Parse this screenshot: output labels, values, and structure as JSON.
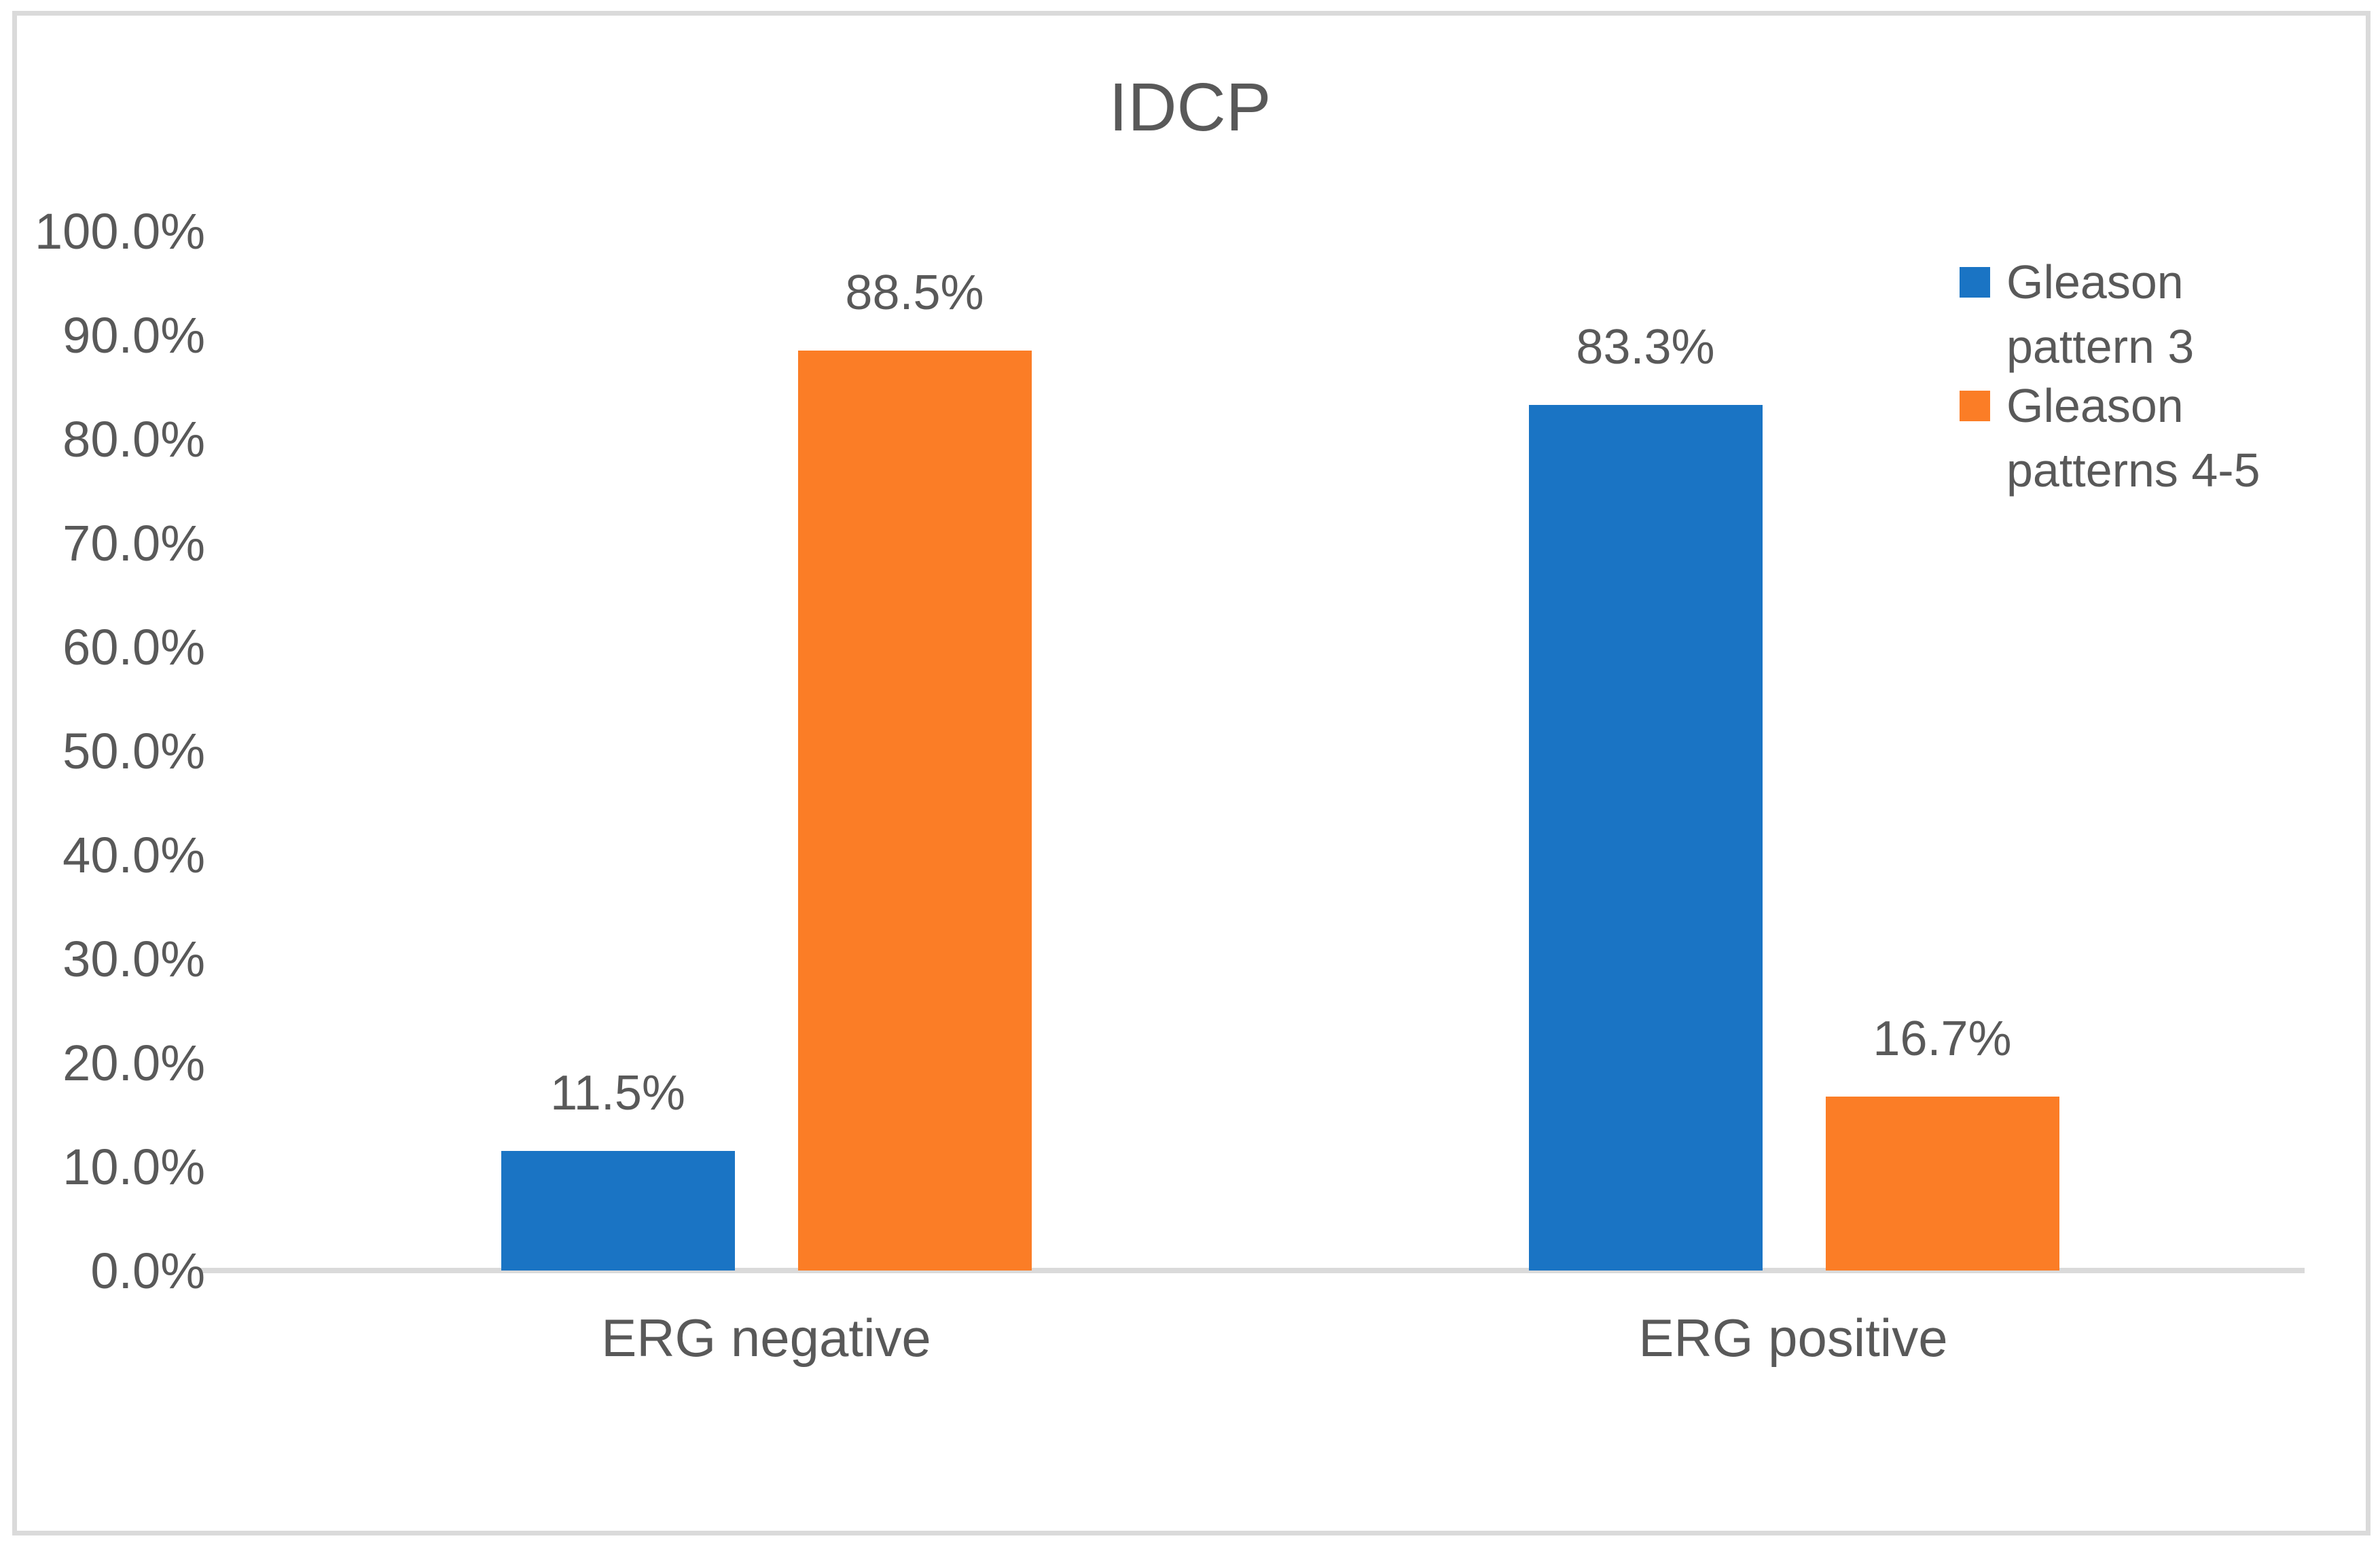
{
  "colors": {
    "background": "#FFFFFF",
    "text": "#595959",
    "axis_line": "#DADADA",
    "frame_border": "#DADADA",
    "series_blue": "#1A74C4",
    "series_orange": "#FB7D26"
  },
  "chart_data": {
    "type": "bar",
    "title": "IDCP",
    "categories": [
      "ERG negative",
      "ERG positive"
    ],
    "series": [
      {
        "name": "Gleason pattern 3",
        "color": "#1A74C4",
        "values": [
          11.5,
          83.3
        ]
      },
      {
        "name": "Gleason patterns 4-5",
        "color": "#FB7D26",
        "values": [
          88.5,
          16.7
        ]
      }
    ],
    "data_labels": [
      "11.5%",
      "88.5%",
      "83.3%",
      "16.7%"
    ],
    "xlabel": "",
    "ylabel": "",
    "ylim": [
      0,
      100
    ],
    "ytick_step": 10,
    "yticks": [
      "100.0%",
      "90.0%",
      "80.0%",
      "70.0%",
      "60.0%",
      "50.0%",
      "40.0%",
      "30.0%",
      "20.0%",
      "10.0%",
      "0.0%"
    ],
    "grid": false,
    "legend_position": "right",
    "data_label_format": "0.0%"
  }
}
